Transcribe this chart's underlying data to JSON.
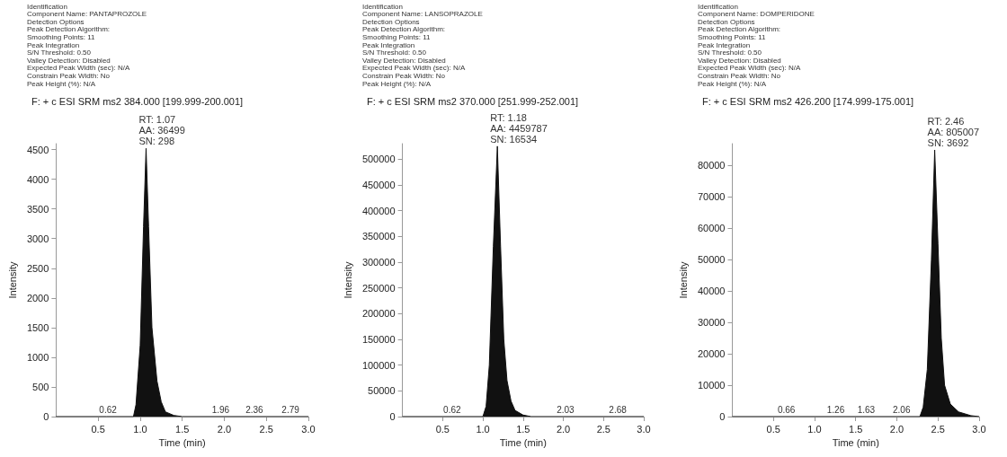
{
  "chart_data": [
    {
      "type": "area",
      "title": "F: + c ESI SRM ms2 384.000 [199.999-200.001]",
      "xlabel": "Time (min)",
      "ylabel": "Intensity",
      "annotations": [
        "Identification",
        "Component Name: PANTAPROZOLE",
        "Detection Options",
        "Peak Detection Algorithm:",
        "Smoothing Points: 11",
        "Peak Integration",
        "S/N Threshold: 0.50",
        "Valley Detection: Disabled",
        "Expected Peak Width (sec): N/A",
        "Constrain Peak Width: No",
        "Peak Height (%): N/A",
        {
          "text": "RT: 1.07\nAA: 36499\nSN: 298",
          "x": 1.07,
          "y": 4520
        },
        {
          "text": "0.62",
          "x": 0.62,
          "y": 0
        },
        {
          "text": "1.96",
          "x": 1.96,
          "y": 0
        },
        {
          "text": "2.36",
          "x": 2.36,
          "y": 0
        },
        {
          "text": "2.79",
          "x": 2.79,
          "y": 0
        }
      ],
      "x": [
        0,
        0.6,
        0.92,
        0.95,
        1.0,
        1.04,
        1.07,
        1.1,
        1.14,
        1.2,
        1.25,
        1.3,
        1.4,
        1.5,
        3.0
      ],
      "values": [
        0,
        0,
        0,
        200,
        1200,
        3200,
        4520,
        3200,
        1500,
        600,
        250,
        80,
        20,
        0,
        0
      ],
      "color": "#111111",
      "marker": "none",
      "grid": false,
      "xlim": [
        0,
        3
      ],
      "xticks": [
        0.5,
        {
          "value": 1,
          "label": "1.0"
        },
        1.5,
        {
          "value": 2,
          "label": "2.0"
        },
        2.5,
        {
          "value": 3,
          "label": "3.0"
        }
      ],
      "ylim": [
        0,
        4600
      ],
      "yticks": [
        0,
        500,
        1000,
        1500,
        2000,
        2500,
        3000,
        3500,
        4000,
        4500
      ]
    },
    {
      "type": "area",
      "title": "F: + c ESI SRM ms2 370.000 [251.999-252.001]",
      "xlabel": "Time (min)",
      "ylabel": "Intensity",
      "annotations": [
        "Identification",
        "Component Name: LANSOPRAZOLE",
        "Detection Options",
        "Peak Detection Algorithm:",
        "Smoothing Points: 11",
        "Peak Integration",
        "S/N Threshold: 0.50",
        "Valley Detection: Disabled",
        "Expected Peak Width (sec): N/A",
        "Constrain Peak Width: No",
        "Peak Height (%): N/A",
        {
          "text": "RT: 1.18\nAA: 4459787\nSN: 16534",
          "x": 1.18,
          "y": 525000
        },
        {
          "text": "0.62",
          "x": 0.62,
          "y": 0
        },
        {
          "text": "2.03",
          "x": 2.03,
          "y": 0
        },
        {
          "text": "2.68",
          "x": 2.68,
          "y": 0
        }
      ],
      "x": [
        0,
        1.0,
        1.04,
        1.08,
        1.13,
        1.18,
        1.22,
        1.26,
        1.3,
        1.35,
        1.4,
        1.5,
        1.6,
        3.0
      ],
      "values": [
        0,
        0,
        20000,
        100000,
        330000,
        525000,
        330000,
        150000,
        70000,
        30000,
        12000,
        3000,
        0,
        0
      ],
      "color": "#111111",
      "marker": "none",
      "grid": false,
      "xlim": [
        0,
        3
      ],
      "xticks": [
        0.5,
        {
          "value": 1,
          "label": "1.0"
        },
        1.5,
        {
          "value": 2,
          "label": "2.0"
        },
        2.5,
        {
          "value": 3,
          "label": "3.0"
        }
      ],
      "ylim": [
        0,
        530000
      ],
      "yticks": [
        0,
        50000,
        100000,
        150000,
        200000,
        250000,
        300000,
        350000,
        400000,
        450000,
        500000
      ]
    },
    {
      "type": "area",
      "title": "F: + c ESI SRM ms2 426.200 [174.999-175.001]",
      "xlabel": "Time (min)",
      "ylabel": "Intensity",
      "annotations": [
        "Identification",
        "Component Name: DOMPERIDONE",
        "Detection Options",
        "Peak Detection Algorithm:",
        "Smoothing Points: 11",
        "Peak Integration",
        "S/N Threshold: 0.50",
        "Valley Detection: Disabled",
        "Expected Peak Width (sec): N/A",
        "Constrain Peak Width: No",
        "Peak Height (%): N/A",
        {
          "text": "RT: 2.46\nAA: 805007\nSN: 3692",
          "x": 2.46,
          "y": 85000
        },
        {
          "text": "0.66",
          "x": 0.66,
          "y": 0
        },
        {
          "text": "1.26",
          "x": 1.26,
          "y": 0
        },
        {
          "text": "1.63",
          "x": 1.63,
          "y": 0
        },
        {
          "text": "2.06",
          "x": 2.06,
          "y": 0
        }
      ],
      "x": [
        0,
        2.28,
        2.32,
        2.37,
        2.42,
        2.46,
        2.5,
        2.54,
        2.58,
        2.65,
        2.75,
        2.9,
        3.0
      ],
      "values": [
        0,
        0,
        3000,
        15000,
        50000,
        85000,
        55000,
        25000,
        10000,
        4000,
        1500,
        300,
        0
      ],
      "color": "#111111",
      "marker": "none",
      "grid": false,
      "xlim": [
        0,
        3
      ],
      "xticks": [
        0.5,
        {
          "value": 1,
          "label": "1.0"
        },
        1.5,
        {
          "value": 2,
          "label": "2.0"
        },
        2.5,
        {
          "value": 3,
          "label": "3.0"
        }
      ],
      "ylim": [
        0,
        87000
      ],
      "yticks": [
        0,
        10000,
        20000,
        30000,
        40000,
        50000,
        60000,
        70000,
        80000
      ]
    }
  ]
}
